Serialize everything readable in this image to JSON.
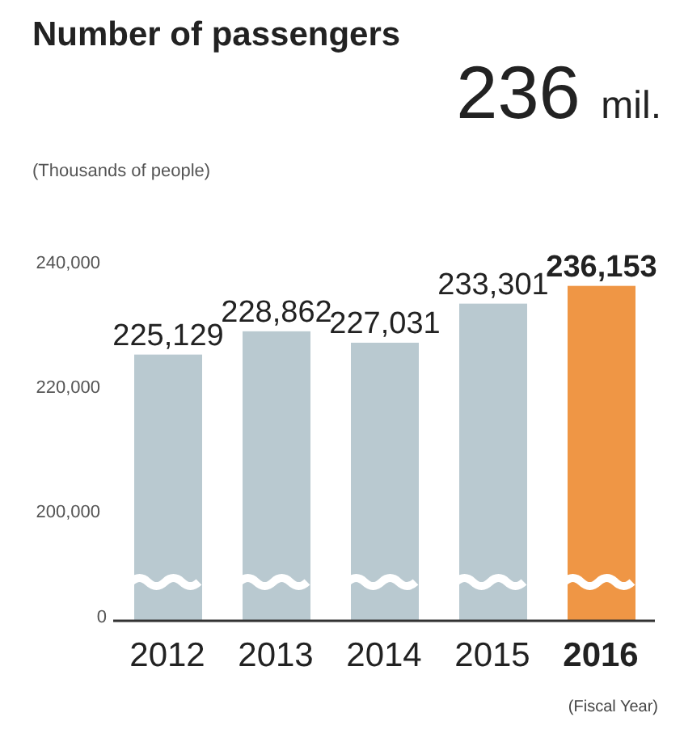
{
  "chart_data": {
    "type": "bar",
    "title": "Number of passengers",
    "subtitle": "236 mil.",
    "ylabel": "(Thousands of people)",
    "xlabel": "(Fiscal Year)",
    "categories": [
      "2012",
      "2013",
      "2014",
      "2015",
      "2016"
    ],
    "values": [
      225129,
      228862,
      227031,
      233301,
      236153
    ],
    "colors": [
      "#b9c9d0",
      "#b9c9d0",
      "#b9c9d0",
      "#b9c9d0",
      "#ef9645"
    ],
    "value_labels": [
      "225,129",
      "228,862",
      "227,031",
      "233,301",
      "236,153"
    ],
    "ylim": [
      182400,
      240000
    ],
    "yticks": [
      {
        "value": 200000,
        "label": "200,000"
      },
      {
        "value": 220000,
        "label": "220,000"
      },
      {
        "value": 240000,
        "label": "240,000"
      }
    ],
    "annotations": [
      "0"
    ]
  }
}
